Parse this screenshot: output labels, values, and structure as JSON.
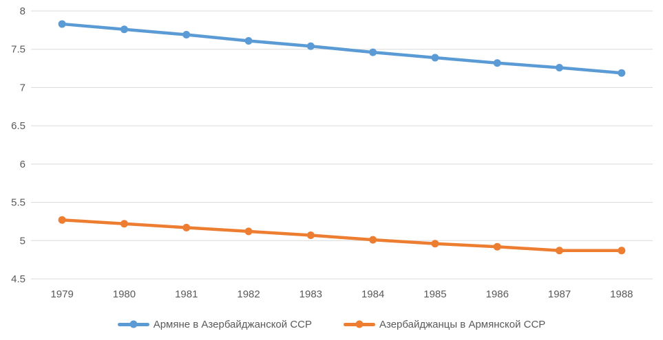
{
  "chart_data": {
    "type": "line",
    "title": "",
    "xlabel": "",
    "ylabel": "",
    "categories": [
      "1979",
      "1980",
      "1981",
      "1982",
      "1983",
      "1984",
      "1985",
      "1986",
      "1987",
      "1988"
    ],
    "series": [
      {
        "name": "Армяне в Азербайджанской ССР",
        "color": "#5B9BD5",
        "values": [
          7.83,
          7.76,
          7.69,
          7.61,
          7.54,
          7.46,
          7.39,
          7.32,
          7.26,
          7.19
        ]
      },
      {
        "name": "Азербайджанцы в Армянской ССР",
        "color": "#ED7D31",
        "values": [
          5.27,
          5.22,
          5.17,
          5.12,
          5.07,
          5.01,
          4.96,
          4.92,
          4.87,
          4.87
        ]
      }
    ],
    "ylim": [
      4.5,
      8
    ],
    "ystep": 0.5,
    "ytick_labels": [
      "8",
      "7.5",
      "7",
      "6.5",
      "6",
      "5.5",
      "5",
      "4.5"
    ],
    "grid": "horizontal",
    "legend_position": "bottom"
  },
  "colors": {
    "background": "#FFFFFF",
    "gridline": "#D9D9D9",
    "axis_text": "#595959"
  }
}
